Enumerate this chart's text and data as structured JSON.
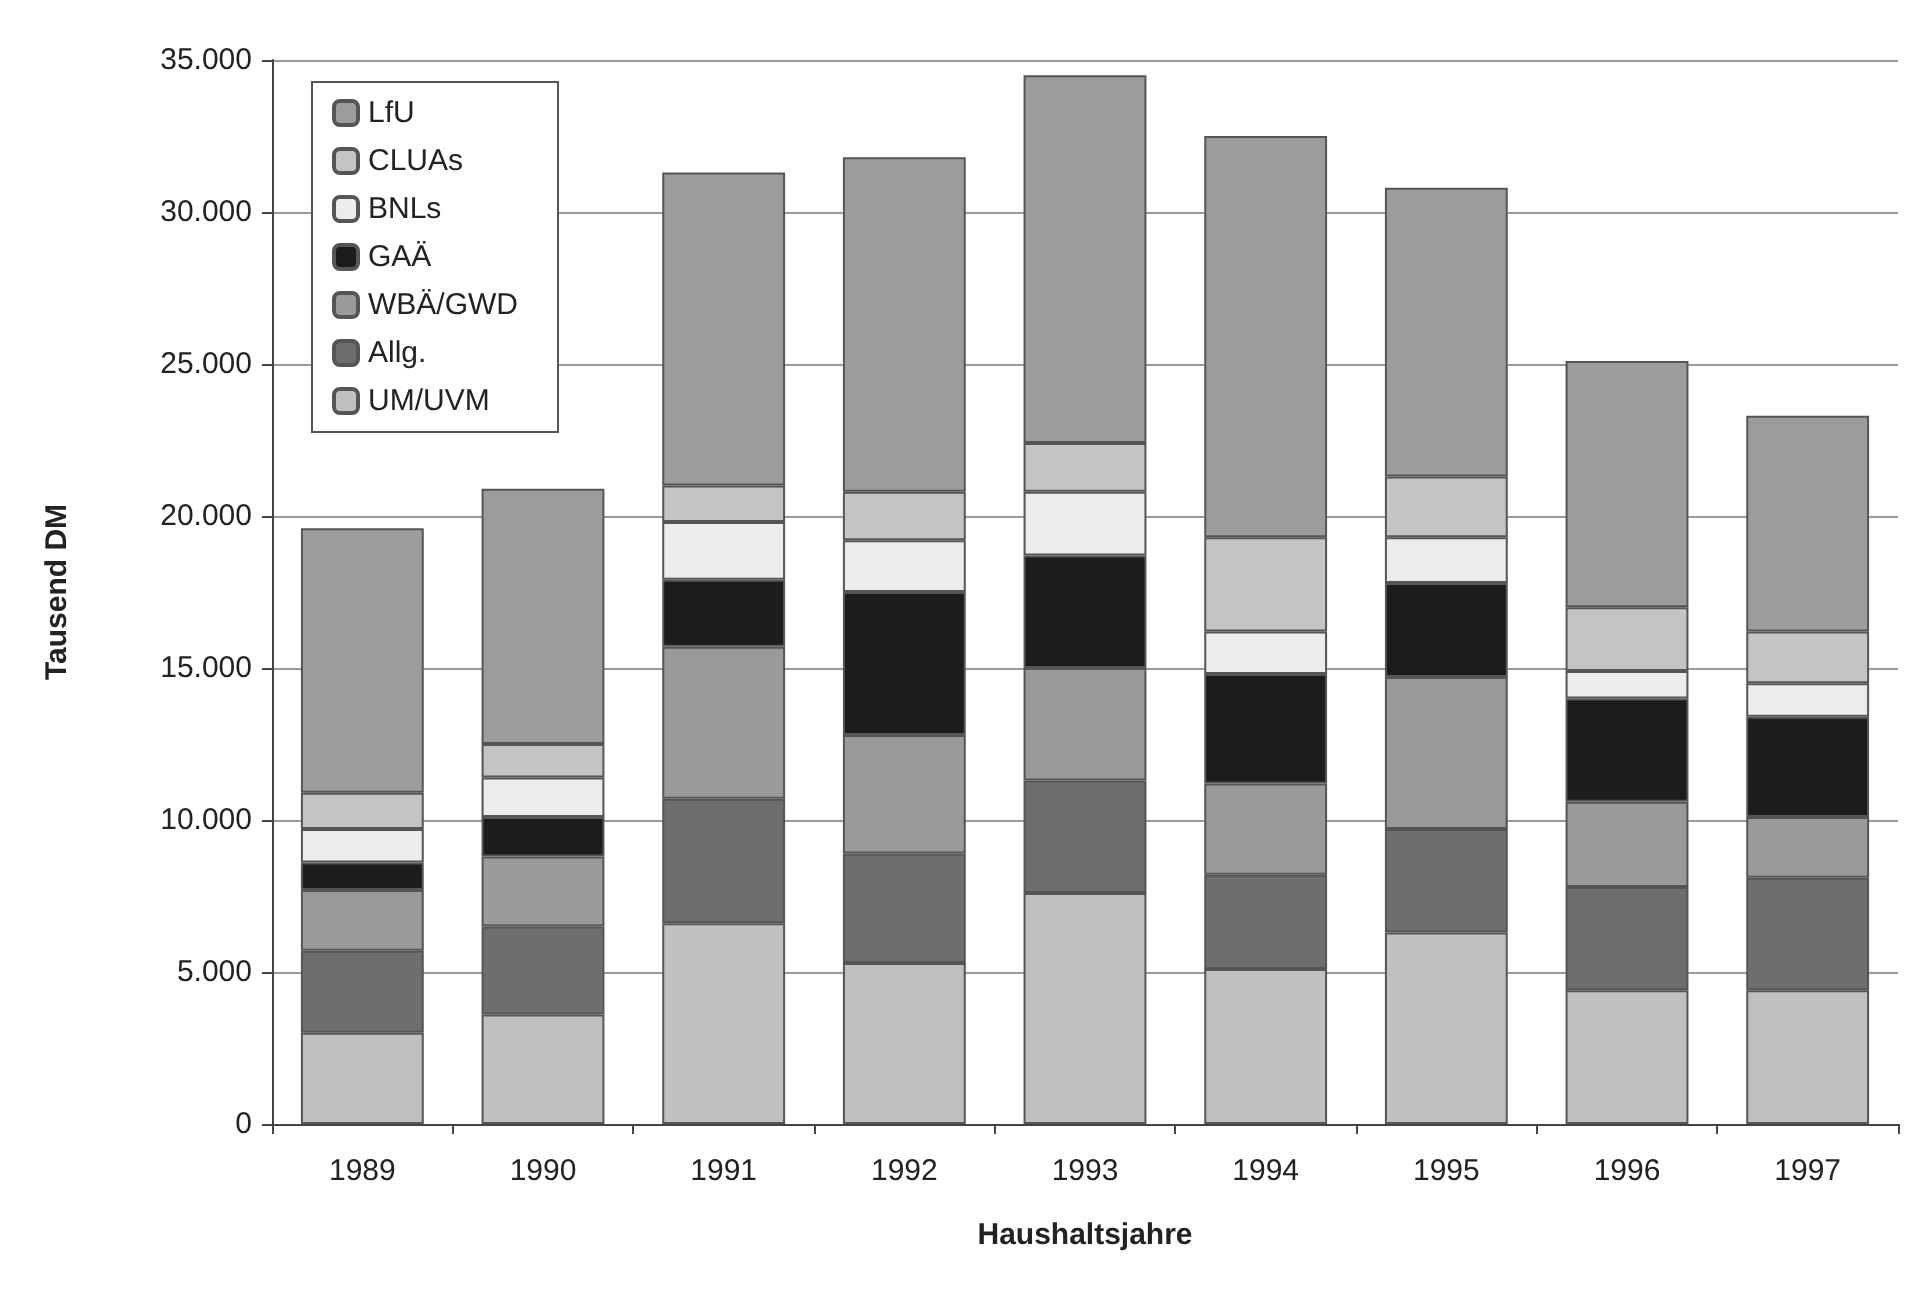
{
  "chart_data": {
    "type": "bar",
    "stacked": true,
    "xlabel": "Haushaltsjahre",
    "ylabel": "Tausend DM",
    "categories": [
      "1989",
      "1990",
      "1991",
      "1992",
      "1993",
      "1994",
      "1995",
      "1996",
      "1997"
    ],
    "series": [
      {
        "name": "UM/UVM",
        "color": "#c0c0c0",
        "values": [
          3000,
          3600,
          6600,
          5300,
          7600,
          5100,
          6300,
          4400,
          4400
        ]
      },
      {
        "name": "Allg.",
        "color": "#6e6e6e",
        "values": [
          2700,
          2900,
          4100,
          3600,
          3700,
          3100,
          3400,
          3400,
          3700
        ]
      },
      {
        "name": "WBÄ/GWD",
        "color": "#9a9a9a",
        "values": [
          2000,
          2300,
          5000,
          3900,
          3700,
          3000,
          5000,
          2800,
          2000
        ]
      },
      {
        "name": "GAÄ",
        "color": "#1c1c1c",
        "values": [
          900,
          1300,
          2200,
          4700,
          3700,
          3600,
          3100,
          3400,
          3300
        ]
      },
      {
        "name": "BNLs",
        "color": "#ececec",
        "values": [
          1100,
          1300,
          1900,
          1700,
          2100,
          1400,
          1500,
          900,
          1100
        ]
      },
      {
        "name": "CLUAs",
        "color": "#c4c4c4",
        "values": [
          1200,
          1100,
          1200,
          1600,
          1600,
          3100,
          2000,
          2100,
          1700
        ]
      },
      {
        "name": "LfU",
        "color": "#9c9c9c",
        "values": [
          8700,
          8400,
          10300,
          11000,
          12100,
          13200,
          9500,
          8100,
          7100
        ]
      }
    ],
    "ylim": [
      0,
      35000
    ],
    "yticks": [
      {
        "value": 0,
        "label": "0"
      },
      {
        "value": 5000,
        "label": "5.000"
      },
      {
        "value": 10000,
        "label": "10.000"
      },
      {
        "value": 15000,
        "label": "15.000"
      },
      {
        "value": 20000,
        "label": "20.000"
      },
      {
        "value": 25000,
        "label": "25.000"
      },
      {
        "value": 30000,
        "label": "30.000"
      },
      {
        "value": 35000,
        "label": "35.000"
      }
    ],
    "grid": "y",
    "legend": "top left"
  }
}
